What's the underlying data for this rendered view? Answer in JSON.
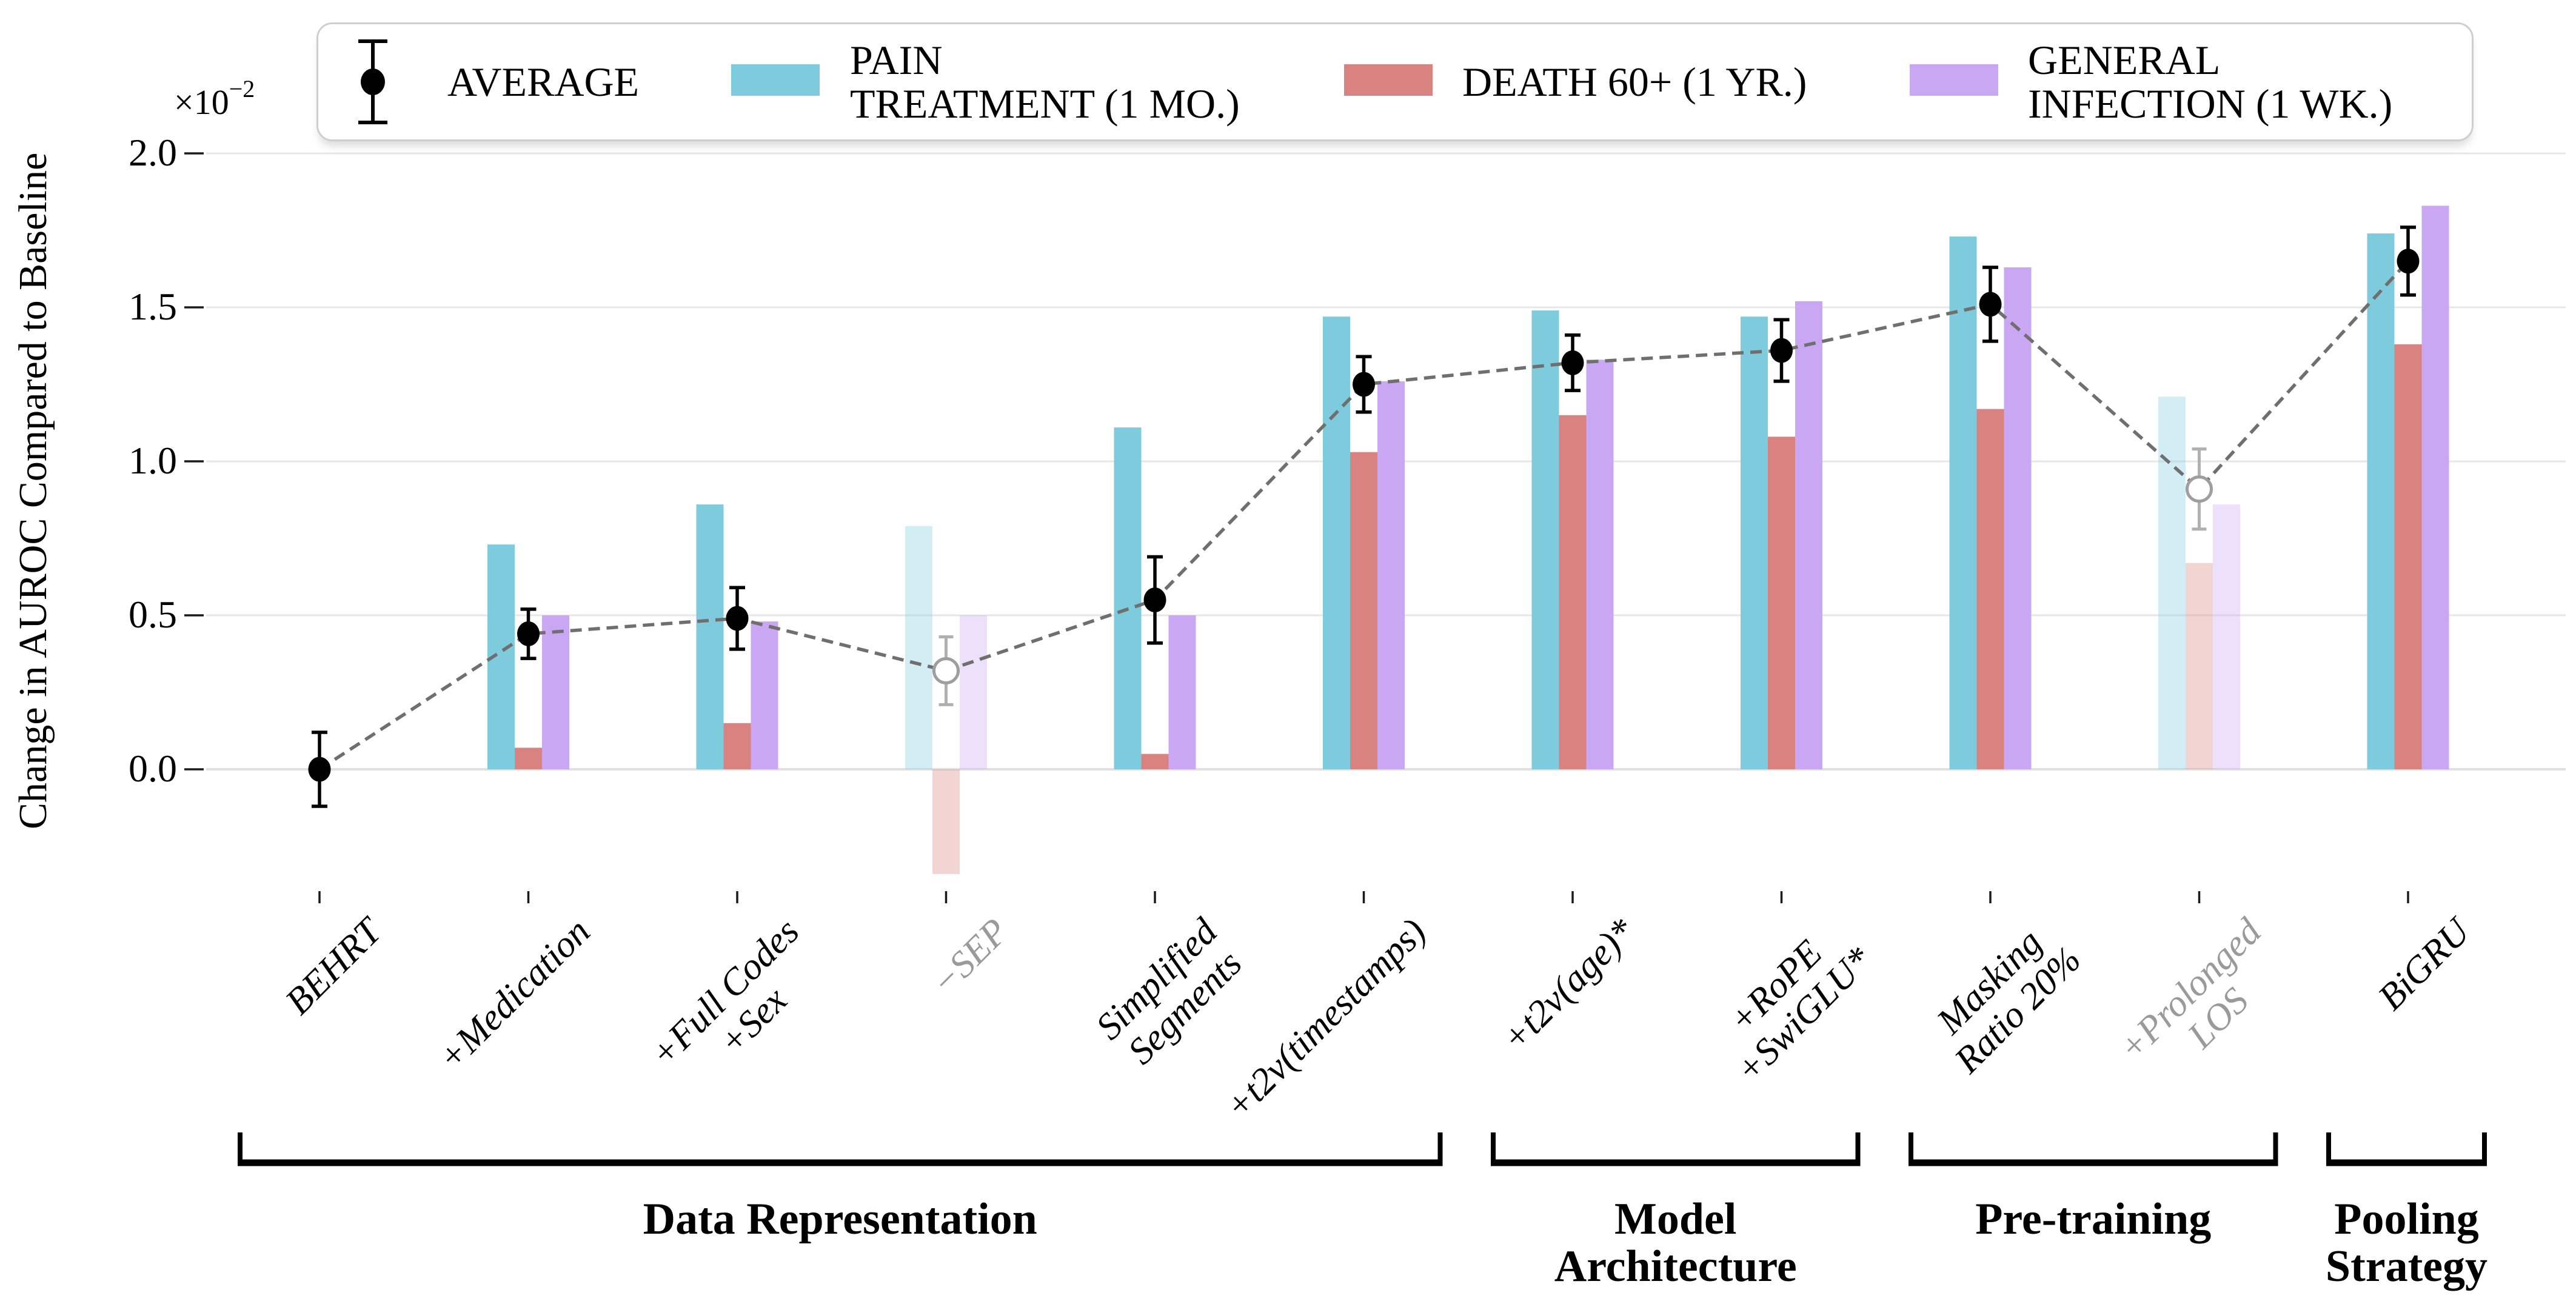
{
  "figure": {
    "y_axis_title": "Change in AUROC Compared to Baseline",
    "y_offset": {
      "base": "×10",
      "exp": "−2"
    }
  },
  "legend": {
    "items": [
      {
        "type": "marker",
        "label": "AVERAGE"
      },
      {
        "type": "swatch",
        "label": "PAIN\nTREATMENT (1 MO.)",
        "color": "#7ecbdd"
      },
      {
        "type": "swatch",
        "label": "DEATH 60+ (1 YR.)",
        "color": "#d98380"
      },
      {
        "type": "swatch",
        "label": "GENERAL\nINFECTION (1 WK.)",
        "color": "#caa7f3"
      }
    ]
  },
  "chart_data": {
    "type": "bar",
    "title": "",
    "xlabel": "",
    "ylabel": "Change in AUROC Compared to Baseline",
    "units_note": "all values are ×10⁻² change in AUROC vs baseline",
    "ylim": [
      -0.45,
      2.05
    ],
    "grid": true,
    "legend_position": "top",
    "y_ticks": [
      {
        "v": 0.0,
        "label": "0.0"
      },
      {
        "v": 0.5,
        "label": "0.5"
      },
      {
        "v": 1.0,
        "label": "1.0"
      },
      {
        "v": 1.5,
        "label": "1.5"
      },
      {
        "v": 2.0,
        "label": "2.0"
      }
    ],
    "categories": [
      {
        "label": "BEHRT",
        "muted": false
      },
      {
        "label": "+Medication",
        "muted": false
      },
      {
        "label": "+Full Codes\n+Sex",
        "muted": false
      },
      {
        "label": "−SEP",
        "muted": true
      },
      {
        "label": "Simplified\nSegments",
        "muted": false
      },
      {
        "label": "+t2v(timestamps)",
        "muted": false
      },
      {
        "label": "+t2v(age)*",
        "muted": false
      },
      {
        "label": "+RoPE\n+SwiGLU*",
        "muted": false
      },
      {
        "label": "Masking\nRatio 20%",
        "muted": false
      },
      {
        "label": "+Prolonged\nLOS",
        "muted": true
      },
      {
        "label": "BiGRU",
        "muted": false
      }
    ],
    "series": [
      {
        "name": "PAIN TREATMENT (1 MO.)",
        "color": "#7ecbdd",
        "values": [
          0,
          0.73,
          0.86,
          0.79,
          1.11,
          1.47,
          1.49,
          1.47,
          1.73,
          1.21,
          1.74
        ]
      },
      {
        "name": "DEATH 60+ (1 YR.)",
        "color": "#d98380",
        "values": [
          0,
          0.07,
          0.15,
          -0.34,
          0.05,
          1.03,
          1.15,
          1.08,
          1.17,
          0.67,
          1.38
        ]
      },
      {
        "name": "GENERAL INFECTION (1 WK.)",
        "color": "#caa7f3",
        "values": [
          0,
          0.5,
          0.48,
          0.5,
          0.5,
          1.26,
          1.33,
          1.52,
          1.63,
          0.86,
          1.83
        ]
      }
    ],
    "average": {
      "name": "AVERAGE",
      "values": [
        0.0,
        0.44,
        0.49,
        0.32,
        0.55,
        1.25,
        1.32,
        1.36,
        1.51,
        0.91,
        1.65
      ],
      "errors": [
        0.12,
        0.08,
        0.1,
        0.11,
        0.14,
        0.09,
        0.09,
        0.1,
        0.12,
        0.13,
        0.11
      ]
    },
    "groups": [
      {
        "label": "Data Representation",
        "from": 0,
        "to": 5
      },
      {
        "label": "Model\nArchitecture",
        "from": 6,
        "to": 7
      },
      {
        "label": "Pre-training",
        "from": 8,
        "to": 9
      },
      {
        "label": "Pooling\nStrategy",
        "from": 10,
        "to": 10
      }
    ]
  }
}
